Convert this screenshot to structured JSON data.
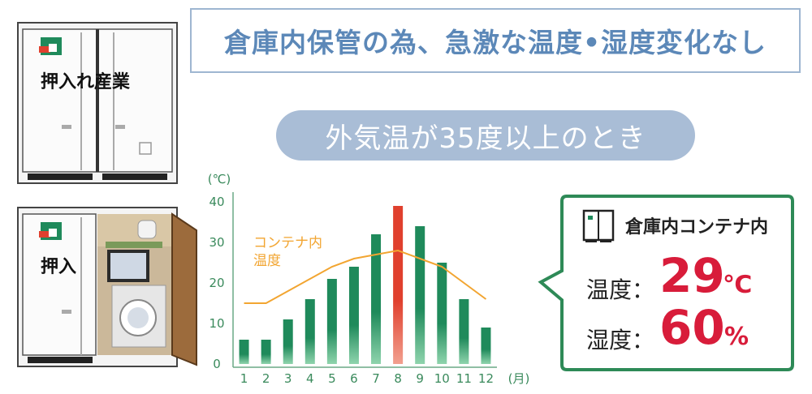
{
  "headline": "倉庫内保管の為、急激な温度•湿度変化なし",
  "subheading": "外気温が35度以上のとき",
  "company_sign": "押入れ産業",
  "chart_data": {
    "type": "bar",
    "categories": [
      "1",
      "2",
      "3",
      "4",
      "5",
      "6",
      "7",
      "8",
      "9",
      "10",
      "11",
      "12"
    ],
    "series": [
      {
        "values": [
          6,
          6,
          11,
          16,
          21,
          24,
          32,
          39,
          34,
          25,
          16,
          9
        ],
        "colors": {
          "normal": "#1f8a5b",
          "highlight": "#e0402e"
        },
        "highlight_index": 7
      },
      {
        "name": "コンテナ内温度",
        "type": "line",
        "values": [
          15,
          15,
          18,
          21,
          24,
          26,
          27,
          28,
          26,
          24,
          20,
          16
        ],
        "color": "#f2a531"
      }
    ],
    "ylim": [
      0,
      40
    ],
    "yticks": [
      0,
      10,
      20,
      30,
      40
    ],
    "y_unit": "(℃)",
    "x_unit": "(月)",
    "line_label_lines": [
      "コンテナ内",
      "温度"
    ]
  },
  "callout": {
    "title": "倉庫内コンテナ内",
    "temp_label": "温度：",
    "temp_value": "29",
    "temp_unit": "℃",
    "humidity_label": "湿度：",
    "humidity_value": "60",
    "humidity_unit": "%",
    "accent": "#d81c3a",
    "border": "#2e8a57"
  }
}
